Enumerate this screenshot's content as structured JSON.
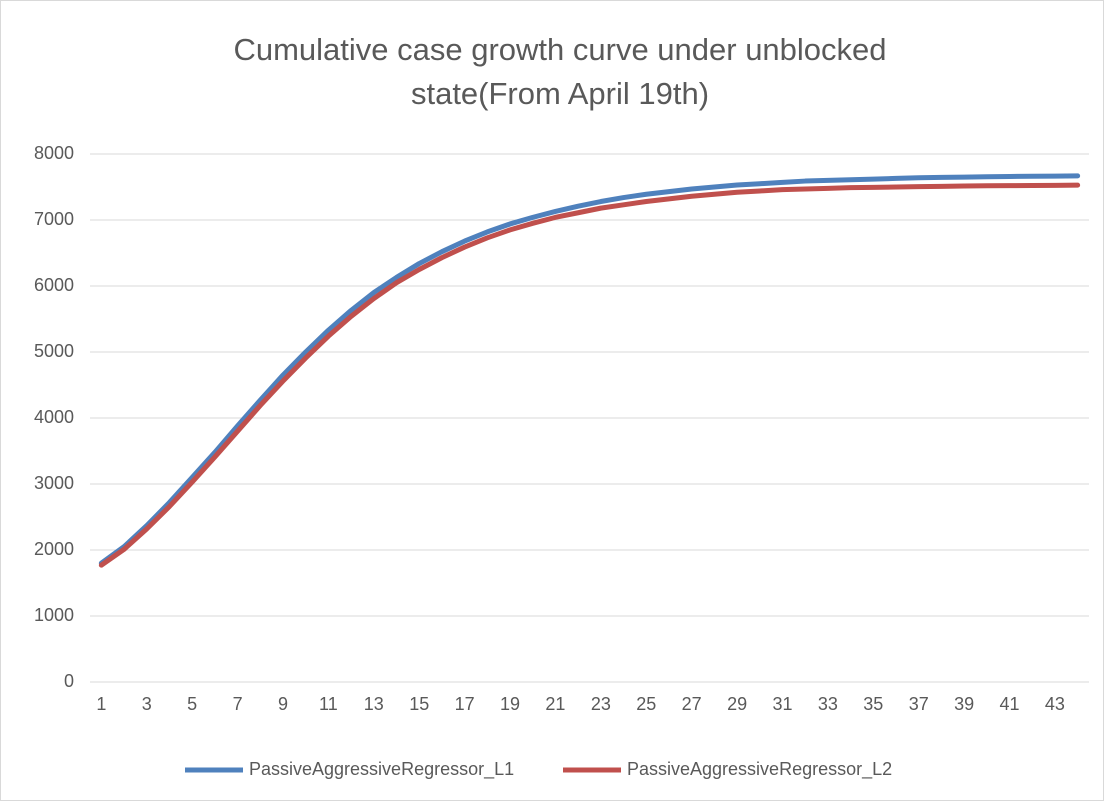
{
  "chart_data": {
    "type": "line",
    "title": "Cumulative case growth curve under unblocked state(From April 19th)",
    "categories": [
      1,
      null,
      3,
      null,
      5,
      null,
      7,
      null,
      9,
      null,
      11,
      null,
      13,
      null,
      15,
      null,
      17,
      null,
      19,
      null,
      21,
      null,
      23,
      null,
      25,
      null,
      27,
      null,
      29,
      null,
      31,
      null,
      33,
      null,
      35,
      null,
      37,
      null,
      39,
      null,
      41,
      null,
      43,
      null
    ],
    "series": [
      {
        "name": "PassiveAggressiveRegressor_L1",
        "color": "#4f81bd",
        "values": [
          1800,
          2050,
          2370,
          2720,
          3100,
          3480,
          3880,
          4270,
          4650,
          5000,
          5330,
          5630,
          5900,
          6130,
          6340,
          6520,
          6680,
          6820,
          6940,
          7040,
          7130,
          7210,
          7280,
          7340,
          7390,
          7430,
          7470,
          7500,
          7530,
          7550,
          7570,
          7590,
          7600,
          7610,
          7620,
          7630,
          7640,
          7645,
          7650,
          7655,
          7660,
          7662,
          7665,
          7668
        ]
      },
      {
        "name": "PassiveAggressiveRegressor_L2",
        "color": "#c0504d",
        "values": [
          1770,
          2010,
          2320,
          2660,
          3030,
          3410,
          3800,
          4190,
          4560,
          4910,
          5240,
          5540,
          5810,
          6050,
          6250,
          6430,
          6590,
          6730,
          6850,
          6950,
          7040,
          7110,
          7180,
          7230,
          7280,
          7320,
          7360,
          7390,
          7420,
          7440,
          7460,
          7470,
          7480,
          7490,
          7495,
          7500,
          7505,
          7510,
          7515,
          7518,
          7520,
          7522,
          7525,
          7528
        ]
      }
    ],
    "ylim": [
      0,
      8000
    ],
    "yticks": [
      0,
      1000,
      2000,
      3000,
      4000,
      5000,
      6000,
      7000,
      8000
    ],
    "grid": true,
    "legend": "bottom"
  }
}
